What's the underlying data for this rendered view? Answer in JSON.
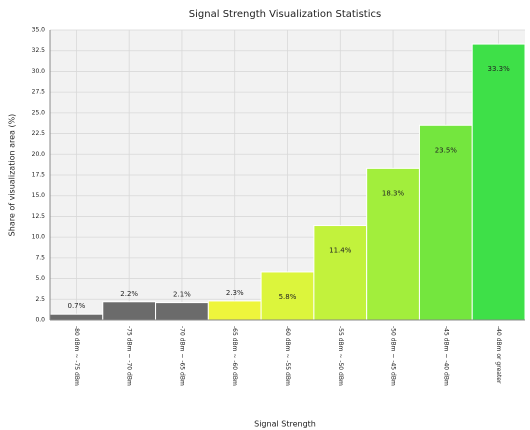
{
  "chart_data": {
    "type": "bar",
    "title": "Signal Strength Visualization Statistics",
    "x_label": "Signal Strength",
    "y_label": "Share of visualization area (%)",
    "categories": [
      "-80 dBm ~ -75 dBm",
      "-75 dBm ~ -70 dBm",
      "-70 dBm ~ -65 dBm",
      "-65 dBm ~ -60 dBm",
      "-60 dBm ~ -55 dBm",
      "-55 dBm ~ -50 dBm",
      "-50 dBm ~ -45 dBm",
      "-45 dBm ~ -40 dBm",
      "-40 dBm or greater"
    ],
    "values": [
      0.7,
      2.2,
      2.1,
      2.3,
      5.8,
      11.4,
      18.3,
      23.5,
      33.3
    ],
    "value_labels": [
      "0.7%",
      "2.2%",
      "2.1%",
      "2.3%",
      "5.8%",
      "11.4%",
      "18.3%",
      "23.5%",
      "33.3%"
    ],
    "colors": [
      "#6b6b6b",
      "#6b6b6b",
      "#6b6b6b",
      "#eef53c",
      "#dcf53c",
      "#c2f23c",
      "#a2ee3c",
      "#74e63e",
      "#3ee048"
    ],
    "ylim": [
      0,
      35
    ],
    "yticks": [
      {
        "value": 0,
        "label": "0.0"
      },
      {
        "value": 2.5,
        "label": "2.5"
      },
      {
        "value": 5,
        "label": "5.0"
      },
      {
        "value": 7.5,
        "label": "7.5"
      },
      {
        "value": 10,
        "label": "10.0"
      },
      {
        "value": 12.5,
        "label": "12.5"
      },
      {
        "value": 15,
        "label": "15.0"
      },
      {
        "value": 17.5,
        "label": "17.5"
      },
      {
        "value": 20,
        "label": "20.0"
      },
      {
        "value": 22.5,
        "label": "22.5"
      },
      {
        "value": 25,
        "label": "25.0"
      },
      {
        "value": 27.5,
        "label": "27.5"
      },
      {
        "value": 30,
        "label": "30.0"
      },
      {
        "value": 32.5,
        "label": "32.5"
      },
      {
        "value": 35,
        "label": "35.0"
      }
    ],
    "grid": true
  }
}
